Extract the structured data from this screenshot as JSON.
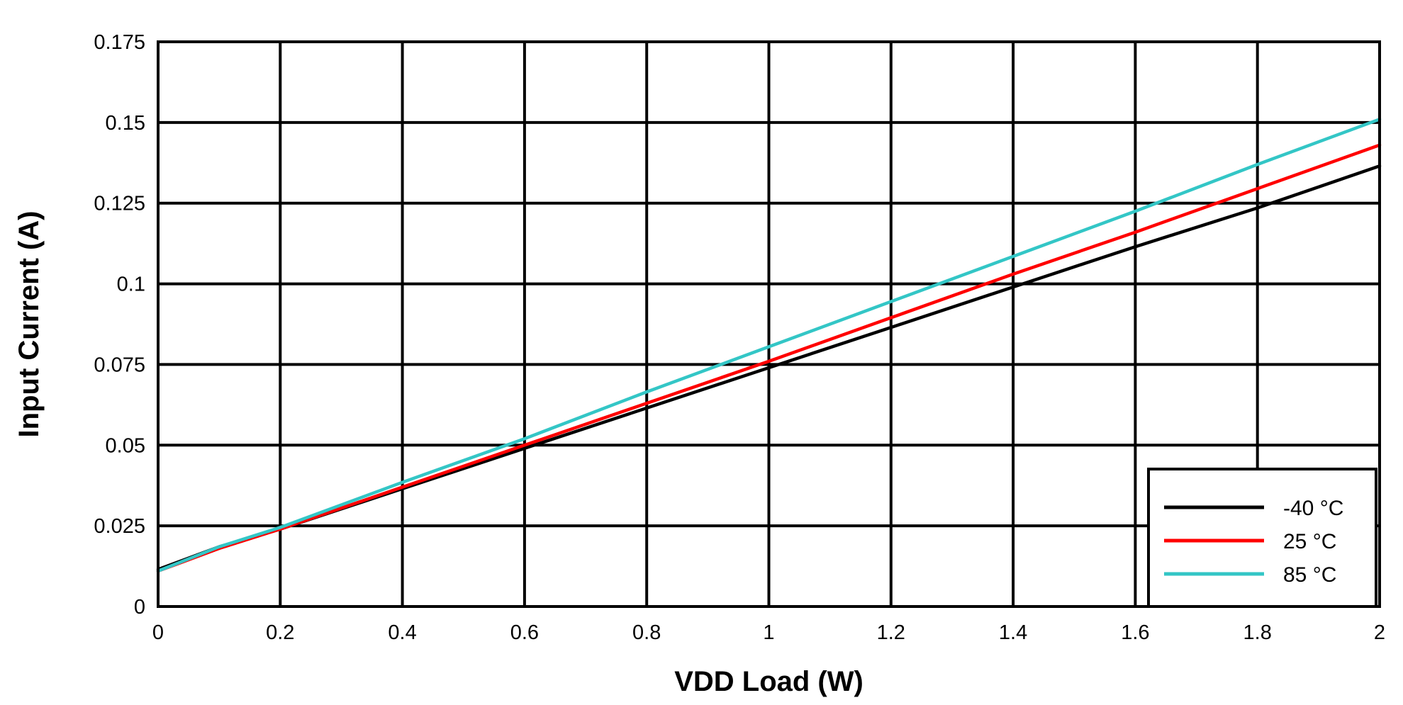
{
  "chart_data": {
    "type": "line",
    "title": "",
    "xlabel": "VDD Load (W)",
    "ylabel": "Input Current (A)",
    "xlim": [
      0,
      2
    ],
    "ylim": [
      0,
      0.175
    ],
    "x_ticks": [
      "0",
      "0.2",
      "0.4",
      "0.6",
      "0.8",
      "1",
      "1.2",
      "1.4",
      "1.6",
      "1.8",
      "2"
    ],
    "y_ticks": [
      "0",
      "0.025",
      "0.05",
      "0.075",
      "0.1",
      "0.125",
      "0.15",
      "0.175"
    ],
    "grid": true,
    "legend_position": "bottom-right",
    "x": [
      0,
      0.1,
      0.2,
      0.4,
      0.6,
      0.8,
      1.0,
      1.2,
      1.4,
      1.6,
      1.8,
      2.0
    ],
    "series": [
      {
        "name": "-40 °C",
        "color": "#000000",
        "values": [
          0.0115,
          0.0185,
          0.024,
          0.0365,
          0.049,
          0.0615,
          0.074,
          0.0865,
          0.099,
          0.1115,
          0.1235,
          0.1365
        ]
      },
      {
        "name": "25 °C",
        "color": "#ff0000",
        "values": [
          0.011,
          0.018,
          0.024,
          0.037,
          0.05,
          0.063,
          0.076,
          0.0895,
          0.103,
          0.116,
          0.1295,
          0.143
        ]
      },
      {
        "name": "85 °C",
        "color": "#33c6c6",
        "values": [
          0.011,
          0.0185,
          0.0245,
          0.0385,
          0.052,
          0.0665,
          0.0805,
          0.0945,
          0.1085,
          0.1225,
          0.137,
          0.151
        ]
      }
    ]
  }
}
